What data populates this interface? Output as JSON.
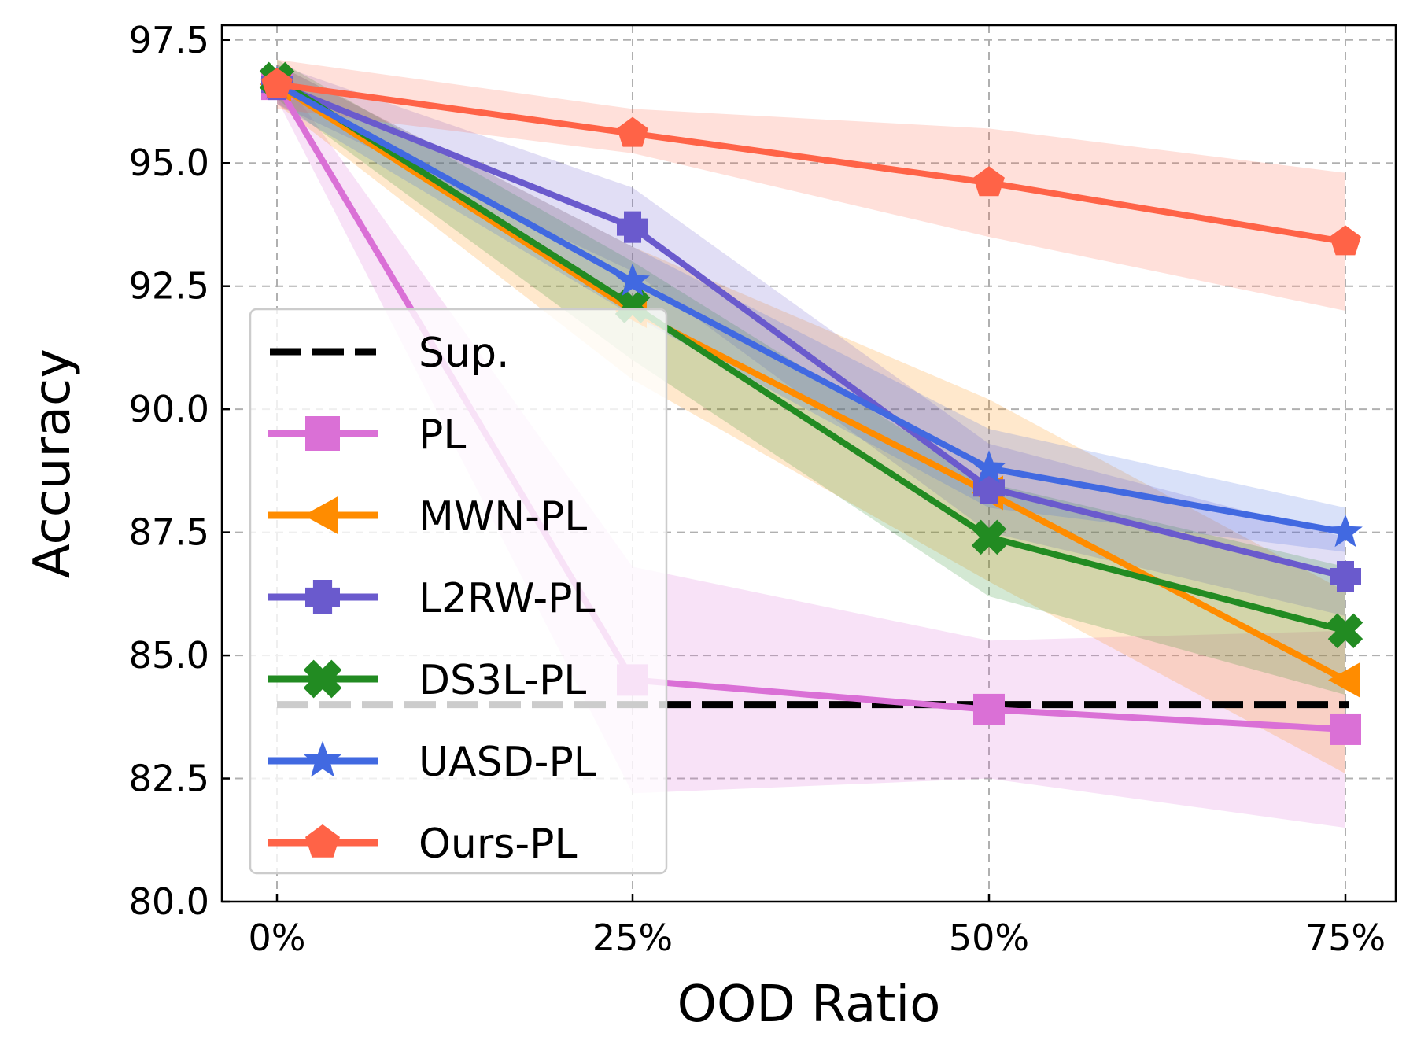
{
  "chart_data": {
    "type": "line",
    "title": "",
    "xlabel": "OOD Ratio",
    "ylabel": "Accuracy",
    "categories": [
      "0%",
      "25%",
      "50%",
      "75%"
    ],
    "ylim": [
      80.0,
      97.8
    ],
    "yticks": [
      "80.0",
      "82.5",
      "85.0",
      "87.5",
      "90.0",
      "92.5",
      "95.0",
      "97.5"
    ],
    "grid": true,
    "legend_position": "center-left",
    "baseline": {
      "name": "Sup.",
      "value": 84.0,
      "style": "dashed",
      "color": "#000000"
    },
    "series": [
      {
        "name": "PL",
        "marker": "square",
        "color": "#DA70D6",
        "values": [
          96.6,
          84.5,
          83.9,
          83.5
        ],
        "lower": [
          96.3,
          82.2,
          82.5,
          81.5
        ],
        "upper": [
          96.9,
          86.8,
          85.3,
          85.5
        ]
      },
      {
        "name": "MWN-PL",
        "marker": "triangle-left",
        "color": "#FF8C00",
        "values": [
          96.6,
          92.0,
          88.3,
          84.5
        ],
        "lower": [
          96.2,
          90.6,
          86.5,
          82.6
        ],
        "upper": [
          97.0,
          93.3,
          90.2,
          86.3
        ]
      },
      {
        "name": "L2RW-PL",
        "marker": "plus",
        "color": "#6A5ACD",
        "values": [
          96.6,
          93.7,
          88.4,
          86.6
        ],
        "lower": [
          96.2,
          92.8,
          87.5,
          85.8
        ],
        "upper": [
          97.0,
          94.5,
          89.3,
          87.4
        ]
      },
      {
        "name": "DS3L-PL",
        "marker": "x",
        "color": "#228B22",
        "values": [
          96.7,
          92.1,
          87.4,
          85.5
        ],
        "lower": [
          96.3,
          91.0,
          86.2,
          84.2
        ],
        "upper": [
          97.1,
          93.0,
          88.5,
          86.8
        ]
      },
      {
        "name": "UASD-PL",
        "marker": "star",
        "color": "#4169E1",
        "values": [
          96.6,
          92.6,
          88.8,
          87.5
        ],
        "lower": [
          96.2,
          91.9,
          88.0,
          87.1
        ],
        "upper": [
          97.0,
          93.3,
          89.6,
          88.0
        ]
      },
      {
        "name": "Ours-PL",
        "marker": "pentagon",
        "color": "#FF6347",
        "values": [
          96.6,
          95.6,
          94.6,
          93.4
        ],
        "lower": [
          96.1,
          95.2,
          93.5,
          92.0
        ],
        "upper": [
          97.1,
          96.1,
          95.7,
          94.8
        ]
      }
    ]
  }
}
